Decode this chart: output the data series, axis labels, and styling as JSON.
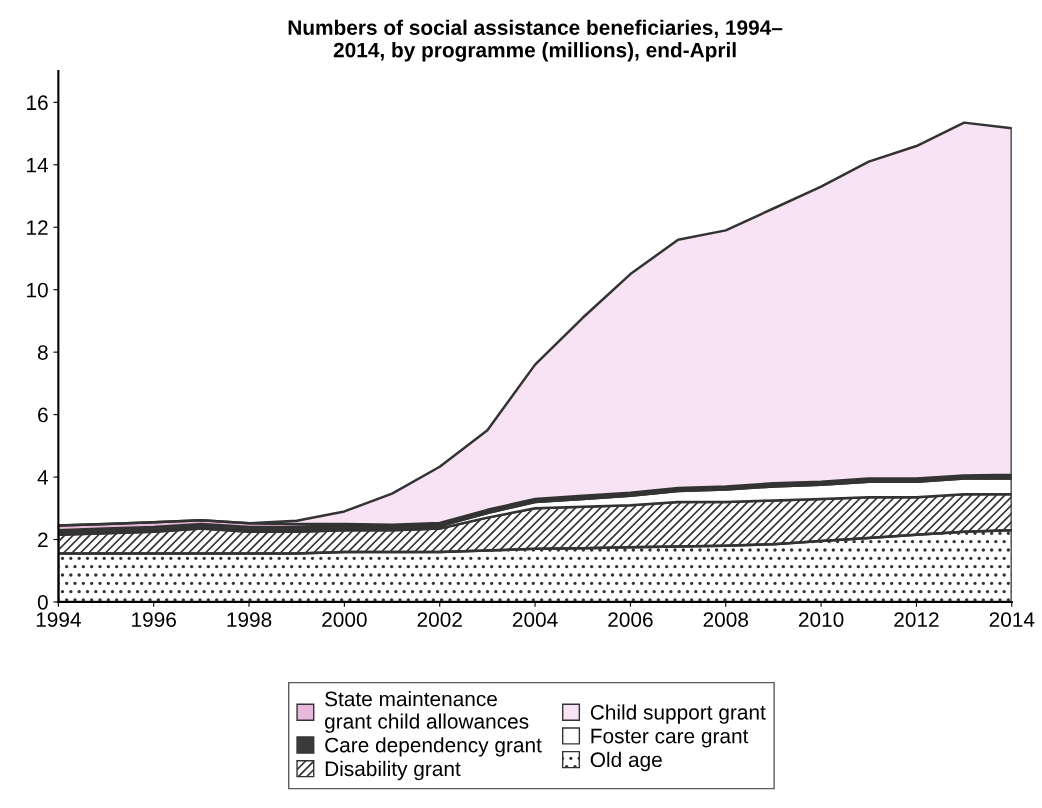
{
  "chart_data": {
    "type": "area",
    "stacked": true,
    "title": "Numbers of social assistance beneficiaries, 1994–\n2014, by programme (millions), end-April",
    "x": [
      1994,
      1995,
      1996,
      1997,
      1998,
      1999,
      2000,
      2001,
      2002,
      2003,
      2004,
      2005,
      2006,
      2007,
      2008,
      2009,
      2010,
      2011,
      2012,
      2013,
      2014
    ],
    "series": [
      {
        "name": "Old age",
        "color": "#ffffff",
        "values": [
          1.55,
          1.55,
          1.55,
          1.55,
          1.55,
          1.55,
          1.6,
          1.6,
          1.6,
          1.65,
          1.7,
          1.72,
          1.75,
          1.78,
          1.8,
          1.85,
          1.95,
          2.05,
          2.15,
          2.25,
          2.3
        ]
      },
      {
        "name": "Disability grant",
        "color": "#ffffff",
        "values": [
          0.6,
          0.65,
          0.7,
          0.8,
          0.7,
          0.7,
          0.7,
          0.7,
          0.75,
          1.05,
          1.3,
          1.33,
          1.35,
          1.42,
          1.4,
          1.4,
          1.35,
          1.3,
          1.2,
          1.2,
          1.15
        ]
      },
      {
        "name": "Foster care grant",
        "color": "#ffffff",
        "values": [
          0.05,
          0.05,
          0.05,
          0.05,
          0.05,
          0.05,
          0.05,
          0.05,
          0.08,
          0.15,
          0.2,
          0.25,
          0.3,
          0.35,
          0.4,
          0.45,
          0.45,
          0.5,
          0.5,
          0.5,
          0.5
        ]
      },
      {
        "name": "Care dependency grant",
        "color": "#3a3a3a",
        "values": [
          0.1,
          0.1,
          0.1,
          0.1,
          0.1,
          0.1,
          0.1,
          0.1,
          0.1,
          0.1,
          0.1,
          0.1,
          0.1,
          0.1,
          0.1,
          0.1,
          0.1,
          0.1,
          0.1,
          0.1,
          0.12
        ]
      },
      {
        "name": "State maintenance\ngrant child allowances",
        "color": "#e9b9dc",
        "values": [
          0.15,
          0.15,
          0.15,
          0.12,
          0.12,
          0.1,
          0.05,
          0.02,
          0,
          0,
          0,
          0,
          0,
          0,
          0,
          0,
          0,
          0,
          0,
          0,
          0
        ]
      },
      {
        "name": "Child support grant",
        "color": "#f7e3f3",
        "values": [
          0,
          0,
          0,
          0,
          0,
          0.1,
          0.4,
          1.0,
          1.8,
          2.55,
          4.3,
          5.7,
          7.0,
          7.95,
          8.2,
          8.8,
          9.45,
          10.15,
          10.65,
          11.3,
          11.1
        ]
      }
    ],
    "xlim": [
      1994,
      2014
    ],
    "xticks": [
      1994,
      1996,
      1998,
      2000,
      2002,
      2004,
      2006,
      2008,
      2010,
      2012,
      2014
    ],
    "ylim": [
      0,
      17
    ],
    "yticks": [
      0,
      2,
      4,
      6,
      8,
      10,
      12,
      14,
      16
    ],
    "grid": false,
    "legend": "bottom"
  }
}
